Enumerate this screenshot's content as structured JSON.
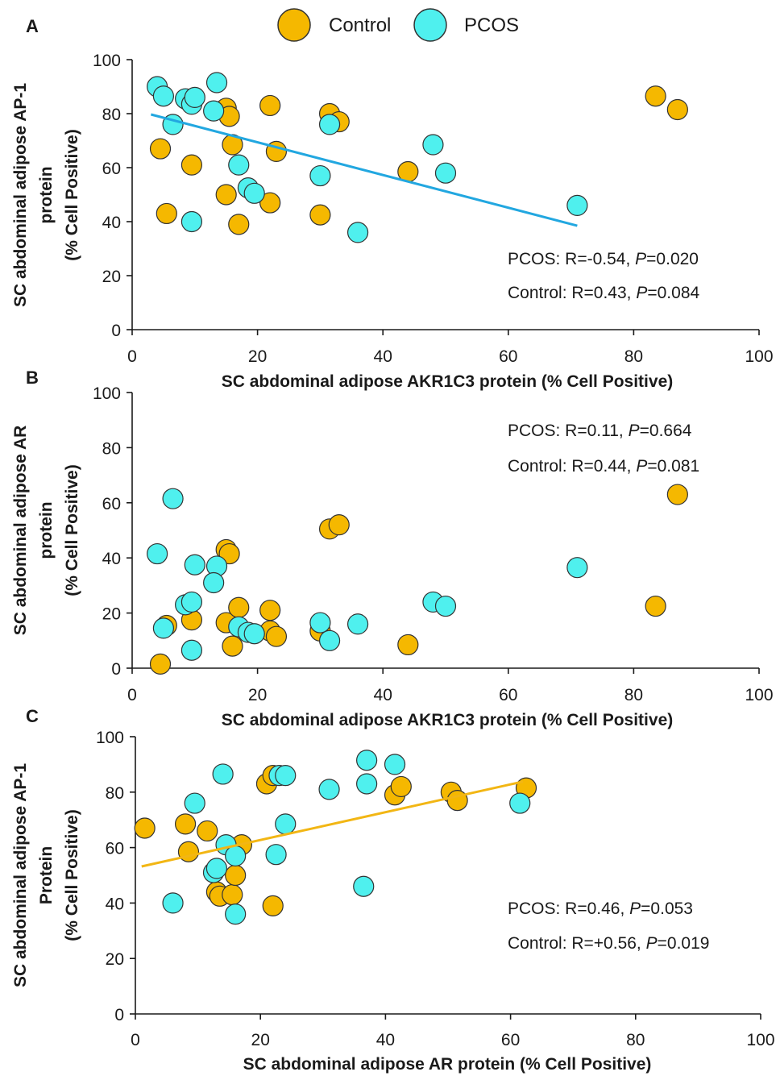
{
  "legend": {
    "control": "Control",
    "pcos": "PCOS"
  },
  "colors": {
    "control": "#F5B800",
    "pcos": "#4FF0EE",
    "control_line": "#F2B614",
    "pcos_line": "#22A7E0",
    "axis": "#1a1a1a",
    "marker_stroke": "#333333"
  },
  "chart_data": [
    {
      "type": "scatter",
      "panel": "A",
      "xlabel": "SC abdominal adipose AKR1C3 protein (% Cell Positive)",
      "ylabel_lines": [
        "SC abdominal adipose AP-1",
        "protein",
        "(% Cell Positive)"
      ],
      "xlim": [
        0,
        100
      ],
      "ylim": [
        0,
        100
      ],
      "xticks": [
        "0",
        "20",
        "40",
        "60",
        "80",
        "100"
      ],
      "yticks": [
        "0",
        "20",
        "40",
        "60",
        "80",
        "100"
      ],
      "grid": false,
      "series": [
        {
          "name": "Control",
          "color": "#F5B800",
          "points": [
            [
              4.5,
              67
            ],
            [
              9.5,
              61
            ],
            [
              5.5,
              43
            ],
            [
              15,
              82
            ],
            [
              15.5,
              79
            ],
            [
              16,
              68.5
            ],
            [
              15,
              50
            ],
            [
              17,
              39
            ],
            [
              22,
              83
            ],
            [
              22,
              47
            ],
            [
              23,
              66
            ],
            [
              30,
              42.5
            ],
            [
              31.5,
              80
            ],
            [
              33,
              77
            ],
            [
              44,
              58.5
            ],
            [
              83.5,
              86.5
            ],
            [
              87,
              81.5
            ]
          ]
        },
        {
          "name": "PCOS",
          "color": "#4FF0EE",
          "points": [
            [
              4,
              90
            ],
            [
              5,
              86.5
            ],
            [
              6.5,
              76
            ],
            [
              8.5,
              85.5
            ],
            [
              9.5,
              83.5
            ],
            [
              10,
              86
            ],
            [
              13.5,
              91.5
            ],
            [
              13,
              81
            ],
            [
              9.5,
              40
            ],
            [
              17,
              61
            ],
            [
              18.5,
              52.5
            ],
            [
              19.5,
              50.5
            ],
            [
              30,
              57
            ],
            [
              31.5,
              76
            ],
            [
              36,
              36
            ],
            [
              48,
              68.5
            ],
            [
              50,
              58
            ],
            [
              71,
              46
            ]
          ]
        }
      ],
      "trendline": {
        "series": "PCOS",
        "x": [
          3,
          71
        ],
        "y": [
          79.7,
          38.5
        ]
      },
      "annotations": [
        {
          "prefix": "PCOS: R=-0.54, ",
          "p": "P",
          "suffix": "=0.020"
        },
        {
          "prefix": "Control: R=0.43, ",
          "p": "P",
          "suffix": "=0.084"
        }
      ]
    },
    {
      "type": "scatter",
      "panel": "B",
      "xlabel": "SC abdominal adipose AKR1C3 protein (% Cell Positive)",
      "ylabel_lines": [
        "SC abdominal adipose AR",
        "protein",
        "(% Cell Positive)"
      ],
      "xlim": [
        0,
        100
      ],
      "ylim": [
        0,
        100
      ],
      "xticks": [
        "0",
        "20",
        "40",
        "60",
        "80",
        "100"
      ],
      "yticks": [
        "0",
        "20",
        "40",
        "60",
        "80",
        "100"
      ],
      "grid": false,
      "series": [
        {
          "name": "Control",
          "color": "#F5B800",
          "points": [
            [
              4.5,
              1.5
            ],
            [
              5.5,
              15.5
            ],
            [
              9.5,
              17.5
            ],
            [
              15,
              43
            ],
            [
              15.5,
              41.5
            ],
            [
              15,
              16.5
            ],
            [
              16,
              8
            ],
            [
              17,
              22
            ],
            [
              22,
              21
            ],
            [
              22,
              13.5
            ],
            [
              23,
              11.5
            ],
            [
              30,
              13.5
            ],
            [
              31.5,
              50.5
            ],
            [
              33,
              52
            ],
            [
              44,
              8.5
            ],
            [
              83.5,
              22.5
            ],
            [
              87,
              63
            ]
          ]
        },
        {
          "name": "PCOS",
          "color": "#4FF0EE",
          "points": [
            [
              4,
              41.5
            ],
            [
              5,
              14.5
            ],
            [
              6.5,
              61.5
            ],
            [
              8.5,
              23
            ],
            [
              9.5,
              24
            ],
            [
              10,
              37.5
            ],
            [
              13.5,
              37
            ],
            [
              13,
              31
            ],
            [
              9.5,
              6.5
            ],
            [
              17,
              15
            ],
            [
              18.5,
              13
            ],
            [
              19.5,
              12.5
            ],
            [
              30,
              16.5
            ],
            [
              31.5,
              10
            ],
            [
              36,
              16
            ],
            [
              48,
              24
            ],
            [
              50,
              22.5
            ],
            [
              71,
              36.5
            ]
          ]
        }
      ],
      "trendline": null,
      "annotations": [
        {
          "prefix": "PCOS: R=0.11, ",
          "p": "P",
          "suffix": "=0.664"
        },
        {
          "prefix": "Control: R=0.44, ",
          "p": "P",
          "suffix": "=0.081"
        }
      ]
    },
    {
      "type": "scatter",
      "panel": "C",
      "xlabel": "SC abdominal adipose AR protein (% Cell Positive)",
      "ylabel_lines": [
        "SC abdominal adipose AP-1",
        "Protein",
        "(% Cell Positive)"
      ],
      "xlim": [
        0,
        100
      ],
      "ylim": [
        0,
        100
      ],
      "xticks": [
        "0",
        "20",
        "40",
        "60",
        "80",
        "100"
      ],
      "yticks": [
        "0",
        "20",
        "40",
        "60",
        "80",
        "100"
      ],
      "grid": false,
      "series": [
        {
          "name": "Control",
          "color": "#F5B800",
          "points": [
            [
              1.5,
              67
            ],
            [
              8,
              68.5
            ],
            [
              8.5,
              58.5
            ],
            [
              11.5,
              66
            ],
            [
              13,
              44
            ],
            [
              13.5,
              42.5
            ],
            [
              15.5,
              43
            ],
            [
              16,
              50
            ],
            [
              17,
              61
            ],
            [
              21,
              83
            ],
            [
              22,
              86
            ],
            [
              22,
              39
            ],
            [
              41.5,
              79
            ],
            [
              42.5,
              82
            ],
            [
              50.5,
              80
            ],
            [
              51.5,
              77
            ],
            [
              62.5,
              81.5
            ]
          ]
        },
        {
          "name": "PCOS",
          "color": "#4FF0EE",
          "points": [
            [
              6,
              40
            ],
            [
              9.5,
              76
            ],
            [
              12.5,
              51
            ],
            [
              13,
              52.5
            ],
            [
              14,
              86.5
            ],
            [
              14.5,
              61
            ],
            [
              16,
              57
            ],
            [
              16,
              36
            ],
            [
              22.5,
              57.5
            ],
            [
              23,
              86
            ],
            [
              24,
              68.5
            ],
            [
              24,
              86
            ],
            [
              31,
              81
            ],
            [
              37,
              91.5
            ],
            [
              37,
              83
            ],
            [
              36.5,
              46
            ],
            [
              41.5,
              90
            ],
            [
              61.5,
              76
            ]
          ]
        }
      ],
      "trendline": {
        "series": "Control",
        "x": [
          1,
          62
        ],
        "y": [
          53.2,
          83.8
        ]
      },
      "annotations": [
        {
          "prefix": "PCOS: R=0.46, ",
          "p": "P",
          "suffix": "=0.053"
        },
        {
          "prefix": "Control: R=+0.56, ",
          "p": "P",
          "suffix": "=0.019"
        }
      ]
    }
  ]
}
